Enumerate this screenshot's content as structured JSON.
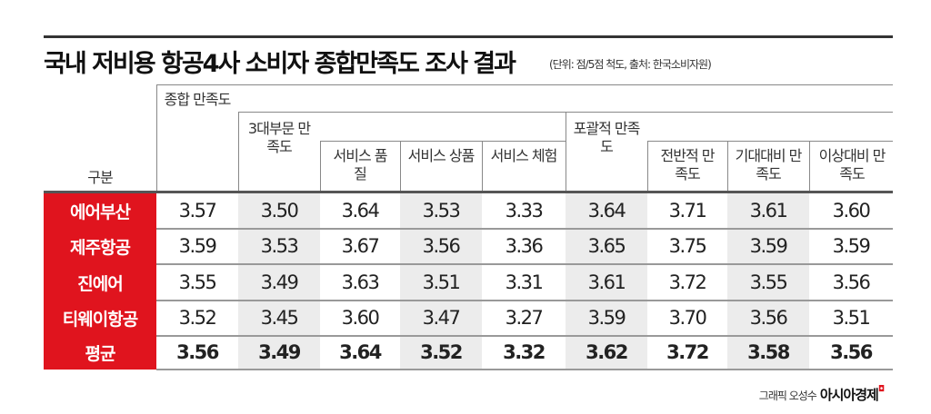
{
  "title": "국내 저비용 항공4사 소비자 종합만족도 조사 결과",
  "unit_note": "(단위: 점/5점 척도, 출처: 한국소비자원)",
  "headers": {
    "row_label": "구분",
    "overall": "종합 만족도",
    "three_part": "3대부문 만족도",
    "service_quality": "서비스 품질",
    "service_product": "서비스 상품",
    "service_experience": "서비스 체험",
    "comprehensive": "포괄적 만족도",
    "general": "전반적 만족도",
    "vs_expectation": "기대대비 만족도",
    "vs_ideal": "이상대비 만족도"
  },
  "rows": [
    {
      "label": "에어부산",
      "values": [
        "3.57",
        "3.50",
        "3.64",
        "3.53",
        "3.33",
        "3.64",
        "3.71",
        "3.61",
        "3.60"
      ]
    },
    {
      "label": "제주항공",
      "values": [
        "3.59",
        "3.53",
        "3.67",
        "3.56",
        "3.36",
        "3.65",
        "3.75",
        "3.59",
        "3.59"
      ]
    },
    {
      "label": "진에어",
      "values": [
        "3.55",
        "3.49",
        "3.63",
        "3.51",
        "3.31",
        "3.61",
        "3.72",
        "3.55",
        "3.56"
      ]
    },
    {
      "label": "티웨이항공",
      "values": [
        "3.52",
        "3.45",
        "3.60",
        "3.47",
        "3.27",
        "3.59",
        "3.70",
        "3.56",
        "3.51"
      ]
    },
    {
      "label": "평균",
      "values": [
        "3.56",
        "3.49",
        "3.64",
        "3.52",
        "3.32",
        "3.62",
        "3.72",
        "3.58",
        "3.56"
      ]
    }
  ],
  "credit": {
    "author": "그래픽 오성수",
    "brand": "아시아경제"
  },
  "colors": {
    "accent": "#e0141e",
    "shade": "#ececec"
  }
}
